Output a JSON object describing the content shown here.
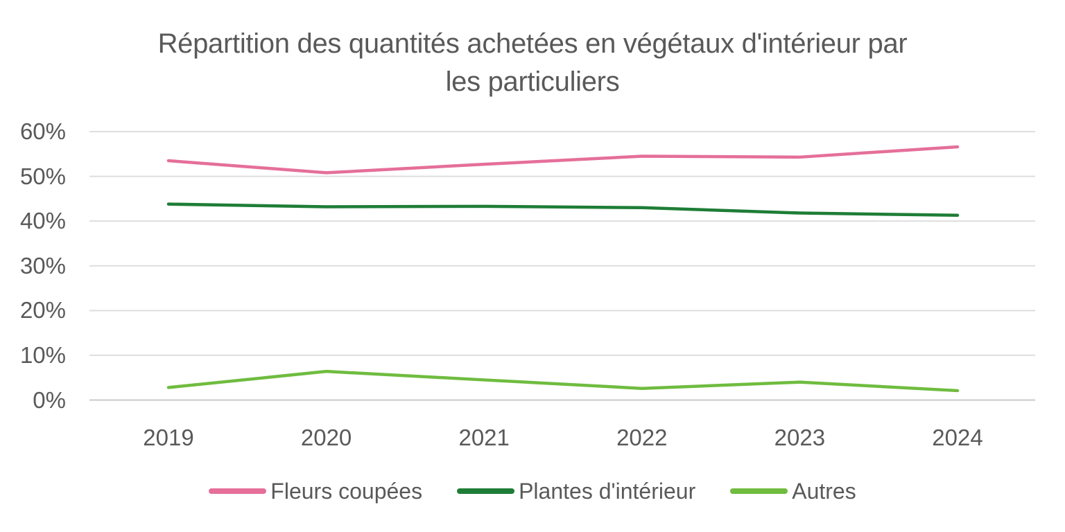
{
  "title": {
    "lines": [
      "Répartition des quantités achetées en végétaux d'intérieur par",
      "les particuliers"
    ]
  },
  "colors": {
    "background": "#ffffff",
    "title_text": "#595959",
    "axis_text": "#595959",
    "gridline": "#dedede",
    "axis_line": "#c9c9c9"
  },
  "chart_data": {
    "type": "line",
    "title": "Répartition des quantités achetées en végétaux d'intérieur par les particuliers",
    "categories": [
      "2019",
      "2020",
      "2021",
      "2022",
      "2023",
      "2024"
    ],
    "series": [
      {
        "name": "Fleurs coupées",
        "color": "#e56f99",
        "values": [
          53.5,
          50.8,
          52.7,
          54.5,
          54.3,
          56.6
        ]
      },
      {
        "name": "Plantes d'intérieur",
        "color": "#1e7d36",
        "values": [
          43.8,
          43.2,
          43.3,
          43.0,
          41.8,
          41.3
        ]
      },
      {
        "name": "Autres",
        "color": "#6fbc3f",
        "values": [
          2.8,
          6.4,
          4.5,
          2.6,
          4.0,
          2.1
        ]
      }
    ],
    "xlabel": "",
    "ylabel": "",
    "ylim": [
      0,
      60
    ],
    "y_ticks": [
      {
        "value": 60,
        "label": "60%"
      },
      {
        "value": 50,
        "label": "50%"
      },
      {
        "value": 40,
        "label": "40%"
      },
      {
        "value": 30,
        "label": "30%"
      },
      {
        "value": 20,
        "label": "20%"
      },
      {
        "value": 10,
        "label": "10%"
      },
      {
        "value": 0,
        "label": "0%"
      }
    ],
    "grid": "horizontal",
    "legend_position": "bottom"
  }
}
